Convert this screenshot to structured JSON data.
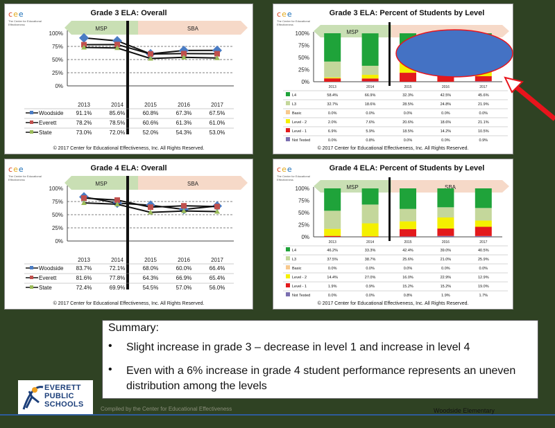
{
  "years": [
    "2013",
    "2014",
    "2015",
    "2016",
    "2017"
  ],
  "logo": {
    "text": "cee",
    "tagline": "The Center for Educational Effectiveness"
  },
  "band": {
    "left": "MSP",
    "right": "SBA"
  },
  "yticks": [
    "0%",
    "25%",
    "50%",
    "75%",
    "100%"
  ],
  "copyright": "© 2017 Center for Educational Effectiveness, Inc. All Rights Reserved.",
  "chart_data": [
    {
      "type": "line",
      "title": "Grade 3 ELA: Overall",
      "x": [
        "2013",
        "2014",
        "2015",
        "2016",
        "2017"
      ],
      "ylim": [
        0,
        100
      ],
      "series": [
        {
          "name": "Woodside",
          "values": [
            91.1,
            85.6,
            60.8,
            67.3,
            67.5
          ],
          "labels": [
            "91.1%",
            "85.6%",
            "60.8%",
            "67.3%",
            "67.5%"
          ],
          "color": "#4a7cc4",
          "marker": "diamond"
        },
        {
          "name": "Everett",
          "values": [
            78.2,
            78.5,
            60.6,
            61.3,
            61.0
          ],
          "labels": [
            "78.2%",
            "78.5%",
            "60.6%",
            "61.3%",
            "61.0%"
          ],
          "color": "#c0504d",
          "marker": "square"
        },
        {
          "name": "State",
          "values": [
            73.0,
            72.0,
            52.0,
            54.3,
            53.0
          ],
          "labels": [
            "73.0%",
            "72.0%",
            "52.0%",
            "54.3%",
            "53.0%"
          ],
          "color": "#9bbb59",
          "marker": "triangle"
        }
      ]
    },
    {
      "type": "bar",
      "stacked": true,
      "title": "Grade 3 ELA: Percent of Students by Level",
      "categories": [
        "2013",
        "2014",
        "2015",
        "2016",
        "2017"
      ],
      "ylim": [
        0,
        100
      ],
      "series": [
        {
          "name": "Not Tested",
          "values": [
            0.0,
            0.8,
            0.0,
            0.0,
            0.9
          ],
          "labels": [
            "0.0%",
            "0.8%",
            "0.0%",
            "0.0%",
            "0.9%"
          ],
          "color": "#7b6fb0"
        },
        {
          "name": "Level - 1",
          "values": [
            6.9,
            5.9,
            18.5,
            14.2,
            10.5
          ],
          "labels": [
            "6.9%",
            "5.9%",
            "18.5%",
            "14.2%",
            "10.5%"
          ],
          "color": "#e31a1c"
        },
        {
          "name": "Level - 2",
          "values": [
            2.0,
            7.6,
            20.6,
            18.6,
            21.1
          ],
          "labels": [
            "2.0%",
            "7.6%",
            "20.6%",
            "18.6%",
            "21.1%"
          ],
          "color": "#f4f000"
        },
        {
          "name": "Basic",
          "values": [
            0.0,
            0.0,
            0.0,
            0.0,
            0.0
          ],
          "labels": [
            "0.0%",
            "0.0%",
            "0.0%",
            "0.0%",
            "0.0%"
          ],
          "color": "#f7c98e"
        },
        {
          "name": "L3",
          "values": [
            32.7,
            18.6,
            28.5,
            24.8,
            21.9
          ],
          "labels": [
            "32.7%",
            "18.6%",
            "28.5%",
            "24.8%",
            "21.9%"
          ],
          "color": "#c4d79b"
        },
        {
          "name": "L4",
          "values": [
            58.4,
            66.9,
            32.3,
            42.5,
            45.6
          ],
          "labels": [
            "58.4%",
            "66.9%",
            "32.3%",
            "42.5%",
            "45.6%"
          ],
          "color": "#1fa33a"
        }
      ]
    },
    {
      "type": "line",
      "title": "Grade 4 ELA: Overall",
      "x": [
        "2013",
        "2014",
        "2015",
        "2016",
        "2017"
      ],
      "ylim": [
        0,
        100
      ],
      "series": [
        {
          "name": "Woodside",
          "values": [
            83.7,
            72.1,
            68.0,
            60.0,
            66.4
          ],
          "labels": [
            "83.7%",
            "72.1%",
            "68.0%",
            "60.0%",
            "66.4%"
          ],
          "color": "#4a7cc4",
          "marker": "diamond"
        },
        {
          "name": "Everett",
          "values": [
            81.6,
            77.8,
            64.3,
            66.9,
            65.4
          ],
          "labels": [
            "81.6%",
            "77.8%",
            "64.3%",
            "66.9%",
            "65.4%"
          ],
          "color": "#c0504d",
          "marker": "square"
        },
        {
          "name": "State",
          "values": [
            72.4,
            69.9,
            54.5,
            57.0,
            56.0
          ],
          "labels": [
            "72.4%",
            "69.9%",
            "54.5%",
            "57.0%",
            "56.0%"
          ],
          "color": "#9bbb59",
          "marker": "triangle"
        }
      ]
    },
    {
      "type": "bar",
      "stacked": true,
      "title": "Grade 4 ELA: Percent of Students by Level",
      "categories": [
        "2013",
        "2014",
        "2015",
        "2016",
        "2017"
      ],
      "ylim": [
        0,
        100
      ],
      "series": [
        {
          "name": "Not Tested",
          "values": [
            0.0,
            0.0,
            0.8,
            1.9,
            1.7
          ],
          "labels": [
            "0.0%",
            "0.0%",
            "0.8%",
            "1.9%",
            "1.7%"
          ],
          "color": "#7b6fb0"
        },
        {
          "name": "Level - 1",
          "values": [
            1.9,
            0.9,
            15.2,
            15.2,
            19.0
          ],
          "labels": [
            "1.9%",
            "0.9%",
            "15.2%",
            "15.2%",
            "19.0%"
          ],
          "color": "#e31a1c"
        },
        {
          "name": "Level - 2",
          "values": [
            14.4,
            27.0,
            16.0,
            22.9,
            12.9
          ],
          "labels": [
            "14.4%",
            "27.0%",
            "16.0%",
            "22.9%",
            "12.9%"
          ],
          "color": "#f4f000"
        },
        {
          "name": "Basic",
          "values": [
            0.0,
            0.0,
            0.0,
            0.0,
            0.0
          ],
          "labels": [
            "0.0%",
            "0.0%",
            "0.0%",
            "0.0%",
            "0.0%"
          ],
          "color": "#f7c98e"
        },
        {
          "name": "L3",
          "values": [
            37.5,
            38.7,
            25.6,
            21.0,
            25.9
          ],
          "labels": [
            "37.5%",
            "38.7%",
            "25.6%",
            "21.0%",
            "25.9%"
          ],
          "color": "#c4d79b"
        },
        {
          "name": "L4",
          "values": [
            46.2,
            33.3,
            42.4,
            39.0,
            40.5
          ],
          "labels": [
            "46.2%",
            "33.3%",
            "42.4%",
            "39.0%",
            "40.5%"
          ],
          "color": "#1fa33a"
        }
      ]
    }
  ],
  "summary": {
    "title": "Summary:",
    "bullets": [
      "Slight increase in grade 3 – decrease in level 1 and increase in level 4",
      "Even with a 6% increase in grade 4 student performance represents an uneven distribution among the levels"
    ]
  },
  "footer": {
    "district": "EVERETT PUBLIC SCHOOLS",
    "district_lines": [
      "EVERETT",
      "PUBLIC",
      "SCHOOLS"
    ],
    "compiled": "Compiled by the Center for Educational Effectiveness",
    "school": "Woodside Elementary"
  },
  "annotations": {
    "ellipse_color": "#4472c4",
    "arrow_color": "#e8141c"
  }
}
